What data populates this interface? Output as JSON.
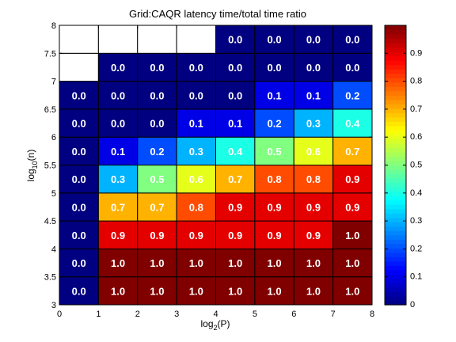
{
  "chart_data": {
    "type": "heatmap",
    "title": "Grid:CAQR latency time/total time ratio",
    "xlabel": {
      "base": "log",
      "sub": "2",
      "arg": "(P)"
    },
    "ylabel": {
      "base": "log",
      "sub": "10",
      "arg": "(n)"
    },
    "xlim": [
      0,
      8
    ],
    "ylim": [
      3,
      8
    ],
    "x_ticks": [
      "0",
      "1",
      "2",
      "3",
      "4",
      "5",
      "6",
      "7",
      "8"
    ],
    "y_ticks": [
      "3",
      "3.5",
      "4",
      "4.5",
      "5",
      "5.5",
      "6",
      "6.5",
      "7",
      "7.5",
      "8"
    ],
    "colorbar": {
      "colormap": "jet",
      "range": [
        0,
        1
      ],
      "ticks": [
        "0",
        "0.1",
        "0.2",
        "0.3",
        "0.4",
        "0.5",
        "0.6",
        "0.7",
        "0.8",
        "0.9"
      ]
    },
    "rows": [
      {
        "y": [
          3.0,
          3.5
        ],
        "values": [
          0.0,
          1.0,
          1.0,
          1.0,
          1.0,
          1.0,
          1.0,
          1.0
        ],
        "labels": [
          "0.0",
          "1.0",
          "1.0",
          "1.0",
          "1.0",
          "1.0",
          "1.0",
          "1.0"
        ]
      },
      {
        "y": [
          3.5,
          4.0
        ],
        "values": [
          0.0,
          1.0,
          1.0,
          1.0,
          1.0,
          1.0,
          1.0,
          1.0
        ],
        "labels": [
          "0.0",
          "1.0",
          "1.0",
          "1.0",
          "1.0",
          "1.0",
          "1.0",
          "1.0"
        ]
      },
      {
        "y": [
          4.0,
          4.5
        ],
        "values": [
          0.0,
          0.9,
          0.9,
          0.9,
          0.9,
          0.9,
          0.9,
          1.0
        ],
        "labels": [
          "0.0",
          "0.9",
          "0.9",
          "0.9",
          "0.9",
          "0.9",
          "0.9",
          "1.0"
        ]
      },
      {
        "y": [
          4.5,
          5.0
        ],
        "values": [
          0.0,
          0.7,
          0.7,
          0.8,
          0.9,
          0.9,
          0.9,
          0.9
        ],
        "labels": [
          "0.0",
          "0.7",
          "0.7",
          "0.8",
          "0.9",
          "0.9",
          "0.9",
          "0.9"
        ]
      },
      {
        "y": [
          5.0,
          5.5
        ],
        "values": [
          0.0,
          0.3,
          0.5,
          0.6,
          0.7,
          0.8,
          0.8,
          0.9
        ],
        "labels": [
          "0.0",
          "0.3",
          "0.5",
          "0.6",
          "0.7",
          "0.8",
          "0.8",
          "0.9"
        ]
      },
      {
        "y": [
          5.5,
          6.0
        ],
        "values": [
          0.0,
          0.1,
          0.2,
          0.3,
          0.4,
          0.5,
          0.6,
          0.7
        ],
        "labels": [
          "0.0",
          "0.1",
          "0.2",
          "0.3",
          "0.4",
          "0.5",
          "0.6",
          "0.7"
        ]
      },
      {
        "y": [
          6.0,
          6.5
        ],
        "values": [
          0.0,
          0.0,
          0.0,
          0.1,
          0.1,
          0.2,
          0.3,
          0.4
        ],
        "labels": [
          "0.0",
          "0.0",
          "0.0",
          "0.1",
          "0.1",
          "0.2",
          "0.3",
          "0.4"
        ]
      },
      {
        "y": [
          6.5,
          7.0
        ],
        "values": [
          0.0,
          0.0,
          0.0,
          0.0,
          0.0,
          0.1,
          0.1,
          0.2
        ],
        "labels": [
          "0.0",
          "0.0",
          "0.0",
          "0.0",
          "0.0",
          "0.1",
          "0.1",
          "0.2"
        ]
      },
      {
        "y": [
          7.0,
          7.5
        ],
        "values": [
          null,
          0.0,
          0.0,
          0.0,
          0.0,
          0.0,
          0.0,
          0.0
        ],
        "labels": [
          null,
          "0.0",
          "0.0",
          "0.0",
          "0.0",
          "0.0",
          "0.0",
          "0.0"
        ]
      },
      {
        "y": [
          7.5,
          8.0
        ],
        "values": [
          null,
          null,
          null,
          null,
          0.0,
          0.0,
          0.0,
          0.0
        ],
        "labels": [
          null,
          null,
          null,
          null,
          "0.0",
          "0.0",
          "0.0",
          "0.0"
        ]
      }
    ]
  }
}
